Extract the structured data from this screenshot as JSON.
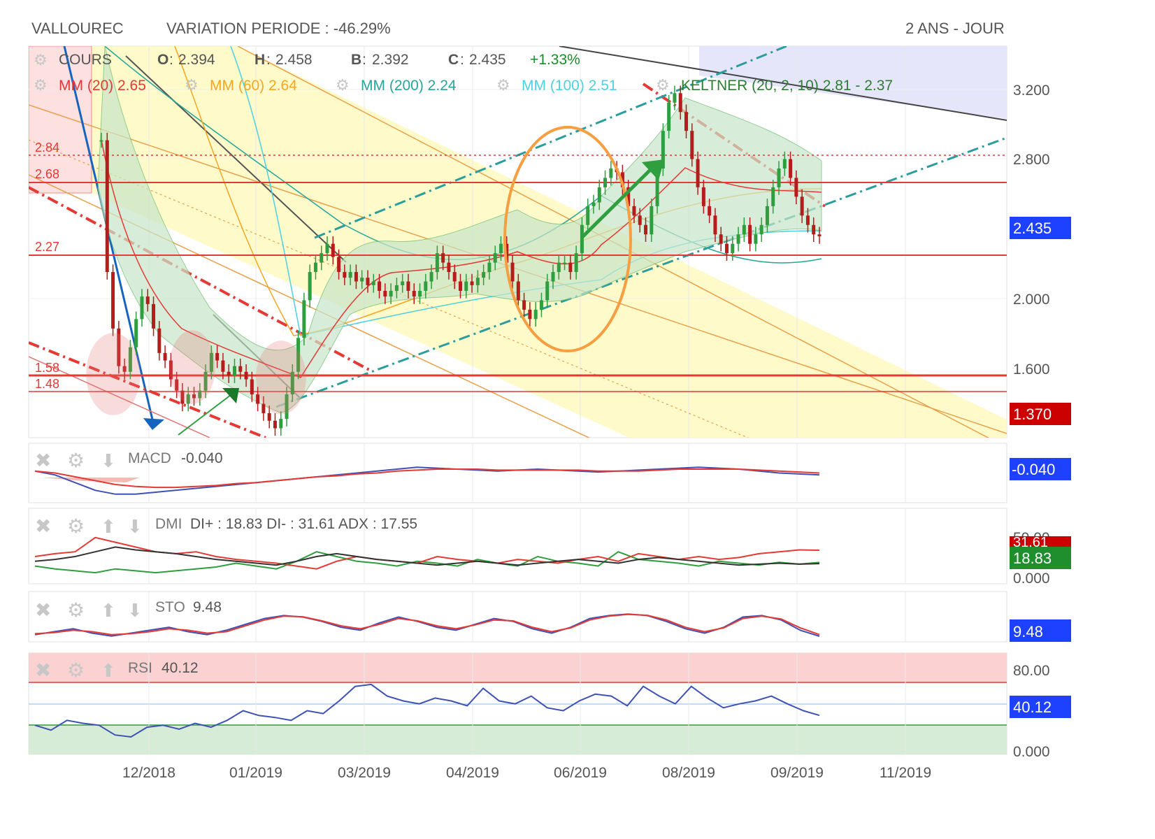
{
  "header": {
    "name": "VALLOUREC",
    "variation": "VARIATION PERIODE : -46.29%",
    "period": "2 ANS - JOUR"
  },
  "legend": {
    "cours": "COURS",
    "open_label": "O",
    "open": "2.394",
    "high_label": "H",
    "high": "2.458",
    "low_label": "B",
    "low": "2.392",
    "close_label": "C",
    "close": "2.435",
    "change": "+1.33%",
    "mm20": "MM (20) 2.65",
    "mm60": "MM (60) 2.64",
    "mm200": "MM (200) 2.24",
    "mm100": "MM (100) 2.51",
    "keltner": "KELTNER (20, 2, 10) 2.81 - 2.37"
  },
  "colors": {
    "mm20": "#e53935",
    "mm60": "#f5a623",
    "mm200": "#26a69a",
    "mm100": "#4dd0e1",
    "keltner": "#2e7d32",
    "up": "#2e9e3e",
    "down": "#b71c1c",
    "channel": "#fff9c4",
    "cloud": "#e6e6fa",
    "badge_blue": "#1e40ff",
    "badge_red": "#cc0000",
    "badge_green": "#1f8f2e"
  },
  "chart_data": [
    {
      "type": "line",
      "name": "price",
      "x_ticks": [
        "12/2018",
        "01/2019",
        "03/2019",
        "04/2019",
        "06/2019",
        "08/2019",
        "09/2019",
        "11/2019"
      ],
      "y_ticks": [
        "3.200",
        "2.800",
        "2.000",
        "1.600"
      ],
      "ylim": [
        1.37,
        3.45
      ],
      "badges": [
        "2.435",
        "1.370"
      ],
      "levels": [
        {
          "label": "2.84",
          "value": 2.84
        },
        {
          "label": "2.68",
          "value": 2.68
        },
        {
          "label": "2.27",
          "value": 2.27
        },
        {
          "label": "1.58",
          "value": 1.58
        },
        {
          "label": "1.48",
          "value": 1.48
        }
      ],
      "close_series": [
        2.95,
        2.25,
        1.95,
        1.75,
        1.72,
        1.85,
        2.0,
        2.12,
        2.08,
        1.95,
        1.82,
        1.78,
        1.68,
        1.62,
        1.55,
        1.6,
        1.58,
        1.62,
        1.72,
        1.82,
        1.78,
        1.72,
        1.7,
        1.75,
        1.72,
        1.68,
        1.6,
        1.55,
        1.5,
        1.46,
        1.42,
        1.47,
        1.6,
        1.72,
        1.9,
        2.1,
        2.25,
        2.3,
        2.35,
        2.4,
        2.33,
        2.25,
        2.22,
        2.25,
        2.2,
        2.22,
        2.18,
        2.2,
        2.15,
        2.12,
        2.15,
        2.18,
        2.2,
        2.15,
        2.12,
        2.15,
        2.2,
        2.25,
        2.35,
        2.3,
        2.25,
        2.2,
        2.15,
        2.2,
        2.18,
        2.22,
        2.25,
        2.3,
        2.35,
        2.4,
        2.3,
        2.2,
        2.1,
        2.05,
        2.0,
        2.05,
        2.1,
        2.2,
        2.25,
        2.3,
        2.3,
        2.25,
        2.35,
        2.5,
        2.6,
        2.62,
        2.7,
        2.75,
        2.8,
        2.78,
        2.7,
        2.6,
        2.55,
        2.5,
        2.45,
        2.6,
        2.8,
        3.0,
        3.15,
        3.2,
        3.1,
        3.0,
        2.85,
        2.7,
        2.6,
        2.55,
        2.45,
        2.4,
        2.35,
        2.4,
        2.45,
        2.5,
        2.4,
        2.45,
        2.5,
        2.6,
        2.7,
        2.8,
        2.85,
        2.75,
        2.65,
        2.55,
        2.5,
        2.45,
        2.44
      ]
    },
    {
      "type": "line",
      "name": "macd",
      "label": "MACD",
      "value": "-0.040",
      "badge": "-0.040",
      "macd": [
        0.0,
        -0.04,
        -0.12,
        -0.2,
        -0.24,
        -0.24,
        -0.22,
        -0.2,
        -0.18,
        -0.16,
        -0.14,
        -0.12,
        -0.1,
        -0.08,
        -0.06,
        -0.04,
        -0.02,
        0.0,
        0.02,
        0.04,
        0.03,
        0.02,
        0.01,
        0.0,
        0.01,
        0.02,
        0.01,
        0.0,
        -0.01,
        0.0,
        0.01,
        0.02,
        0.03,
        0.04,
        0.03,
        0.02,
        0.0,
        -0.02,
        -0.03,
        -0.04
      ],
      "signal": [
        0.0,
        -0.02,
        -0.06,
        -0.1,
        -0.14,
        -0.16,
        -0.17,
        -0.17,
        -0.16,
        -0.15,
        -0.13,
        -0.12,
        -0.1,
        -0.08,
        -0.06,
        -0.05,
        -0.03,
        -0.02,
        0.0,
        0.01,
        0.02,
        0.02,
        0.02,
        0.01,
        0.01,
        0.01,
        0.01,
        0.01,
        0.0,
        0.0,
        0.0,
        0.01,
        0.02,
        0.02,
        0.02,
        0.02,
        0.01,
        0.0,
        -0.01,
        -0.02
      ]
    },
    {
      "type": "line",
      "name": "dmi",
      "label": "DMI",
      "value": "DI+ : 18.83 DI- : 31.61 ADX : 17.55",
      "y_ticks": [
        "50.00",
        "0.000"
      ],
      "badges": [
        "31.61",
        "18.83"
      ],
      "di_plus": [
        15,
        12,
        10,
        8,
        12,
        10,
        8,
        10,
        12,
        14,
        18,
        15,
        12,
        20,
        30,
        25,
        20,
        18,
        15,
        20,
        18,
        15,
        22,
        18,
        15,
        25,
        20,
        18,
        15,
        30,
        22,
        20,
        18,
        15,
        20,
        18,
        16,
        19,
        17,
        18.83
      ],
      "di_minus": [
        25,
        28,
        30,
        45,
        40,
        35,
        30,
        28,
        30,
        25,
        22,
        20,
        18,
        15,
        12,
        20,
        25,
        22,
        20,
        18,
        25,
        22,
        20,
        18,
        22,
        20,
        18,
        22,
        25,
        20,
        28,
        25,
        22,
        25,
        22,
        24,
        28,
        30,
        32,
        31.61
      ],
      "adx": [
        20,
        22,
        25,
        30,
        35,
        32,
        30,
        28,
        25,
        22,
        20,
        18,
        16,
        20,
        25,
        28,
        25,
        22,
        20,
        18,
        16,
        18,
        20,
        18,
        16,
        18,
        20,
        22,
        20,
        18,
        22,
        24,
        22,
        20,
        18,
        16,
        17,
        18,
        17,
        17.55
      ]
    },
    {
      "type": "line",
      "name": "sto",
      "label": "STO",
      "value": "9.48",
      "badge": "9.48",
      "k": [
        15,
        25,
        35,
        20,
        10,
        20,
        30,
        40,
        25,
        15,
        30,
        50,
        70,
        80,
        75,
        60,
        40,
        30,
        55,
        75,
        60,
        40,
        30,
        50,
        70,
        60,
        35,
        20,
        40,
        70,
        80,
        85,
        80,
        60,
        35,
        20,
        40,
        75,
        80,
        65,
        30,
        9.48
      ],
      "d": [
        18,
        22,
        30,
        25,
        15,
        18,
        25,
        35,
        30,
        20,
        25,
        45,
        65,
        78,
        76,
        62,
        45,
        35,
        50,
        70,
        62,
        45,
        35,
        48,
        65,
        62,
        40,
        25,
        38,
        65,
        78,
        84,
        81,
        65,
        40,
        25,
        38,
        70,
        78,
        68,
        38,
        15
      ]
    },
    {
      "type": "line",
      "name": "rsi",
      "label": "RSI",
      "value": "40.12",
      "y_ticks": [
        "80.00",
        "0.000"
      ],
      "badge": "40.12",
      "rsi": [
        30,
        25,
        35,
        32,
        30,
        20,
        18,
        28,
        30,
        26,
        32,
        28,
        35,
        45,
        40,
        38,
        35,
        45,
        42,
        55,
        70,
        72,
        60,
        55,
        52,
        58,
        55,
        50,
        68,
        55,
        52,
        60,
        48,
        45,
        55,
        62,
        60,
        50,
        70,
        60,
        52,
        70,
        58,
        48,
        52,
        55,
        60,
        52,
        45,
        40.12
      ]
    }
  ],
  "sub_axis": {
    "zero": "0.000"
  }
}
